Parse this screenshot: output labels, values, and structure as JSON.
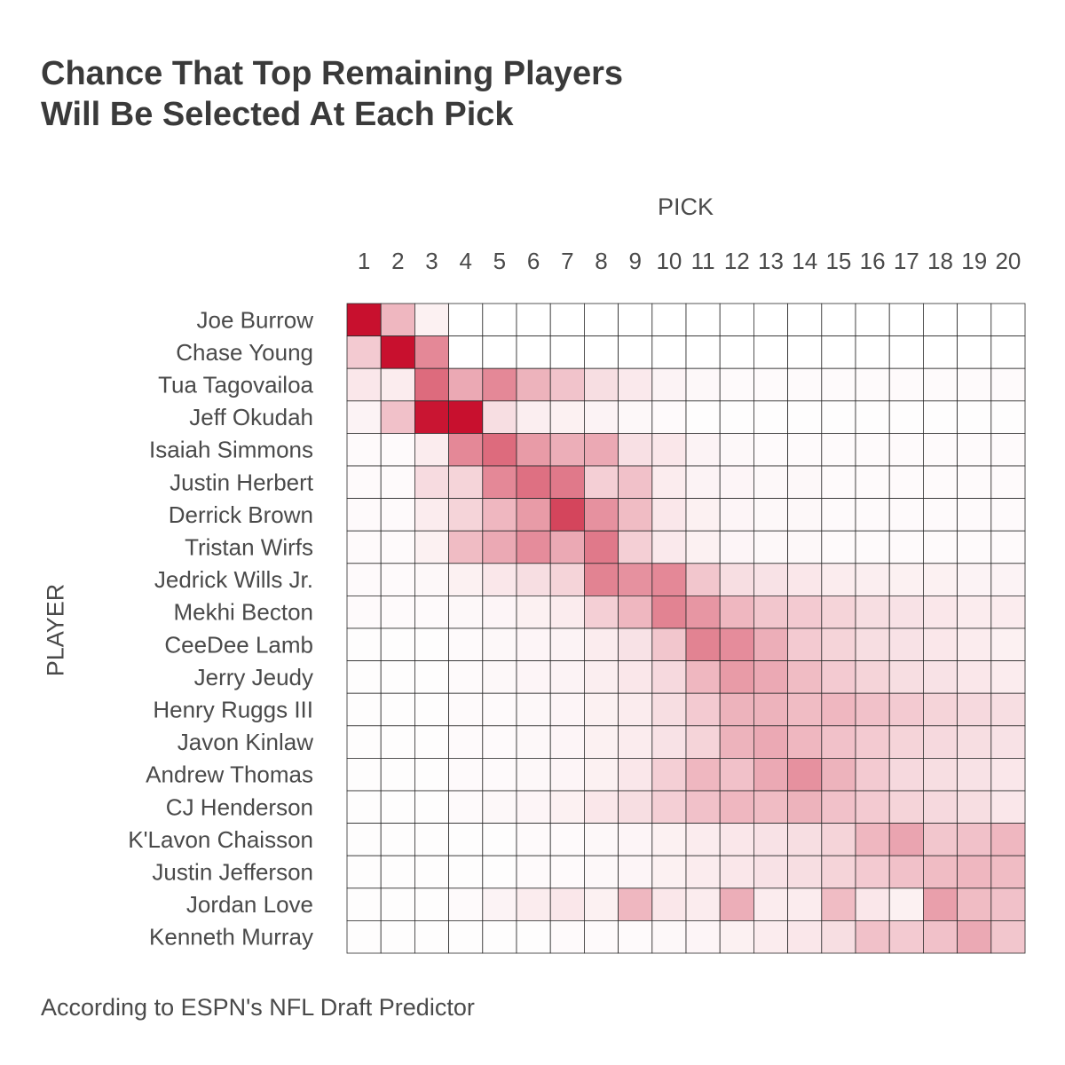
{
  "title_lines": [
    "Chance That Top Remaining Players",
    "Will Be Selected At Each Pick"
  ],
  "footnote": "According to ESPN's NFL Draft Predictor",
  "chart_data": {
    "type": "heatmap",
    "title": "Chance That Top Remaining Players Will Be Selected At Each Pick",
    "xlabel": "PICK",
    "ylabel": "PLAYER",
    "x": [
      "1",
      "2",
      "3",
      "4",
      "5",
      "6",
      "7",
      "8",
      "9",
      "10",
      "11",
      "12",
      "13",
      "14",
      "15",
      "16",
      "17",
      "18",
      "19",
      "20"
    ],
    "y": [
      "Joe Burrow",
      "Chase Young",
      "Tua Tagovailoa",
      "Jeff Okudah",
      "Isaiah Simmons",
      "Justin Herbert",
      "Derrick Brown",
      "Tristan Wirfs",
      "Jedrick Wills Jr.",
      "Mekhi Becton",
      "CeeDee Lamb",
      "Jerry Jeudy",
      "Henry Ruggs III",
      "Javon Kinlaw",
      "Andrew Thomas",
      "CJ Henderson",
      "K'Lavon Chaisson",
      "Justin Jefferson",
      "Jordan Love",
      "Kenneth Murray"
    ],
    "value_scale": "relative intensity 0-1 (1 = darkest red)",
    "colors": {
      "high": "#c8102e",
      "low": "#ffffff",
      "grid": "#2b2b2b"
    },
    "values": [
      [
        1.0,
        0.3,
        0.06,
        0,
        0,
        0,
        0,
        0,
        0,
        0,
        0,
        0,
        0,
        0,
        0,
        0,
        0,
        0,
        0,
        0
      ],
      [
        0.22,
        1.0,
        0.5,
        0,
        0,
        0,
        0,
        0,
        0,
        0,
        0,
        0,
        0,
        0,
        0,
        0,
        0,
        0,
        0,
        0
      ],
      [
        0.1,
        0.08,
        0.62,
        0.36,
        0.5,
        0.32,
        0.25,
        0.14,
        0.09,
        0.05,
        0.03,
        0.02,
        0.02,
        0.02,
        0.02,
        0.02,
        0.02,
        0.02,
        0.02,
        0.02
      ],
      [
        0.05,
        0.26,
        0.98,
        1.0,
        0.14,
        0.07,
        0.06,
        0.05,
        0.03,
        0.02,
        0.01,
        0.01,
        0.01,
        0.01,
        0.01,
        0.01,
        0.01,
        0.01,
        0.01,
        0.01
      ],
      [
        0.02,
        0.02,
        0.08,
        0.5,
        0.62,
        0.42,
        0.34,
        0.36,
        0.13,
        0.1,
        0.05,
        0.03,
        0.02,
        0.02,
        0.02,
        0.02,
        0.02,
        0.02,
        0.02,
        0.02
      ],
      [
        0.02,
        0.02,
        0.15,
        0.18,
        0.5,
        0.6,
        0.56,
        0.2,
        0.26,
        0.08,
        0.05,
        0.04,
        0.03,
        0.03,
        0.02,
        0.02,
        0.02,
        0.02,
        0.02,
        0.02
      ],
      [
        0.02,
        0.02,
        0.08,
        0.18,
        0.3,
        0.42,
        0.78,
        0.46,
        0.28,
        0.1,
        0.06,
        0.04,
        0.03,
        0.03,
        0.02,
        0.02,
        0.02,
        0.02,
        0.02,
        0.02
      ],
      [
        0.02,
        0.02,
        0.06,
        0.28,
        0.36,
        0.48,
        0.36,
        0.56,
        0.2,
        0.09,
        0.06,
        0.04,
        0.03,
        0.03,
        0.02,
        0.02,
        0.02,
        0.02,
        0.02,
        0.02
      ],
      [
        0.02,
        0.02,
        0.03,
        0.06,
        0.1,
        0.14,
        0.18,
        0.52,
        0.46,
        0.5,
        0.24,
        0.14,
        0.12,
        0.1,
        0.08,
        0.07,
        0.06,
        0.06,
        0.05,
        0.05
      ],
      [
        0.02,
        0.02,
        0.02,
        0.03,
        0.04,
        0.06,
        0.08,
        0.2,
        0.3,
        0.52,
        0.44,
        0.3,
        0.24,
        0.22,
        0.18,
        0.14,
        0.12,
        0.1,
        0.08,
        0.08
      ],
      [
        0.01,
        0.01,
        0.01,
        0.02,
        0.03,
        0.04,
        0.05,
        0.08,
        0.12,
        0.24,
        0.52,
        0.48,
        0.34,
        0.22,
        0.18,
        0.14,
        0.12,
        0.1,
        0.08,
        0.06
      ],
      [
        0.01,
        0.01,
        0.01,
        0.02,
        0.03,
        0.04,
        0.05,
        0.07,
        0.1,
        0.16,
        0.3,
        0.42,
        0.36,
        0.28,
        0.22,
        0.18,
        0.14,
        0.12,
        0.1,
        0.08
      ],
      [
        0.01,
        0.01,
        0.01,
        0.02,
        0.02,
        0.03,
        0.04,
        0.06,
        0.08,
        0.14,
        0.22,
        0.32,
        0.32,
        0.28,
        0.3,
        0.26,
        0.22,
        0.18,
        0.16,
        0.14
      ],
      [
        0.01,
        0.01,
        0.01,
        0.02,
        0.02,
        0.03,
        0.04,
        0.06,
        0.08,
        0.12,
        0.18,
        0.32,
        0.36,
        0.3,
        0.26,
        0.22,
        0.18,
        0.16,
        0.14,
        0.12
      ],
      [
        0.01,
        0.01,
        0.01,
        0.02,
        0.02,
        0.03,
        0.04,
        0.06,
        0.1,
        0.2,
        0.3,
        0.26,
        0.36,
        0.46,
        0.32,
        0.22,
        0.16,
        0.14,
        0.12,
        0.1
      ],
      [
        0.01,
        0.01,
        0.01,
        0.02,
        0.03,
        0.04,
        0.06,
        0.1,
        0.14,
        0.2,
        0.26,
        0.3,
        0.28,
        0.32,
        0.26,
        0.22,
        0.18,
        0.16,
        0.14,
        0.1
      ],
      [
        0.01,
        0.01,
        0.01,
        0.01,
        0.01,
        0.02,
        0.02,
        0.03,
        0.04,
        0.06,
        0.08,
        0.1,
        0.12,
        0.14,
        0.18,
        0.3,
        0.38,
        0.24,
        0.26,
        0.3
      ],
      [
        0.01,
        0.01,
        0.01,
        0.01,
        0.01,
        0.02,
        0.02,
        0.03,
        0.04,
        0.06,
        0.08,
        0.1,
        0.12,
        0.14,
        0.18,
        0.22,
        0.26,
        0.28,
        0.3,
        0.28
      ],
      [
        0.01,
        0.01,
        0.01,
        0.02,
        0.05,
        0.08,
        0.1,
        0.06,
        0.3,
        0.1,
        0.08,
        0.34,
        0.08,
        0.08,
        0.28,
        0.1,
        0.06,
        0.4,
        0.28,
        0.26
      ],
      [
        0.01,
        0.01,
        0.01,
        0.01,
        0.01,
        0.01,
        0.02,
        0.02,
        0.02,
        0.03,
        0.04,
        0.06,
        0.08,
        0.1,
        0.14,
        0.26,
        0.22,
        0.26,
        0.36,
        0.24
      ]
    ]
  }
}
